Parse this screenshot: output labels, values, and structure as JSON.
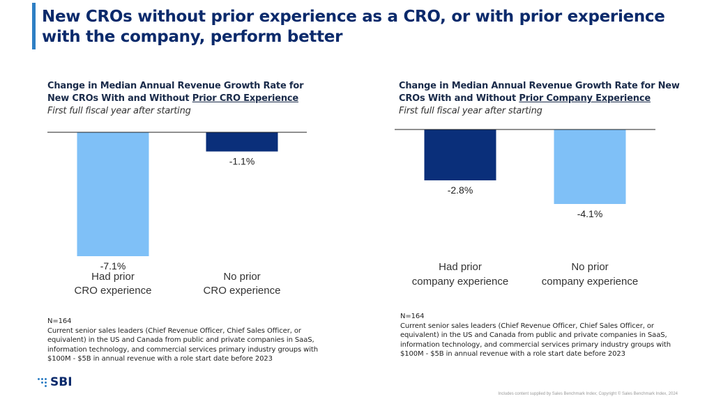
{
  "header": {
    "title": "New CROs without prior experience as a CRO, or with prior experience with the company, perform better"
  },
  "colors": {
    "accent": "#2e7fc4",
    "title": "#0b2a6b",
    "light_bar": "#7fc0f7",
    "dark_bar": "#0a2f7a"
  },
  "chart_data": [
    {
      "type": "bar",
      "title_prefix": "Change in Median Annual Revenue Growth Rate for New CROs With and Without ",
      "title_underlined": "Prior CRO Experience",
      "subtitle": "First full fiscal year after starting",
      "categories": [
        "Had prior CRO experience",
        "No prior CRO experience"
      ],
      "category_lines": [
        [
          "Had prior",
          "CRO experience"
        ],
        [
          "No prior",
          "CRO experience"
        ]
      ],
      "values": [
        -7.1,
        -1.1
      ],
      "value_labels": [
        "-7.1%",
        "-1.1%"
      ],
      "bar_colors": [
        "#7fc0f7",
        "#0a2f7a"
      ],
      "ylim": [
        -7.1,
        0
      ],
      "grid": false,
      "legend": "none"
    },
    {
      "type": "bar",
      "title_prefix": "Change in Median Annual Revenue Growth Rate for New CROs With and Without ",
      "title_underlined": "Prior Company Experience",
      "subtitle": "First full fiscal year after starting",
      "categories": [
        "Had prior company experience",
        "No prior company experience"
      ],
      "category_lines": [
        [
          "Had prior",
          "company experience"
        ],
        [
          "No prior",
          "company experience"
        ]
      ],
      "values": [
        -2.8,
        -4.1
      ],
      "value_labels": [
        "-2.8%",
        "-4.1%"
      ],
      "bar_colors": [
        "#0a2f7a",
        "#7fc0f7"
      ],
      "ylim": [
        -4.1,
        0
      ],
      "grid": false,
      "legend": "none"
    }
  ],
  "notes": {
    "left": {
      "n": "N=164",
      "text": "Current senior sales leaders (Chief Revenue Officer, Chief Sales Officer, or equivalent) in the US and Canada from public and private companies in SaaS, information technology, and commercial services primary industry groups with $100M - $5B in annual revenue with a role start date before 2023"
    },
    "right": {
      "n": "N=164",
      "text": "Current senior sales leaders (Chief Revenue Officer, Chief Sales Officer, or equivalent) in the US and Canada from public and private companies in SaaS, information technology, and commercial services primary industry groups with $100M - $5B in annual revenue with a role start date before 2023"
    }
  },
  "footer": {
    "logo_text": "SBI",
    "copyright": "Includes content supplied by Sales Benchmark Index; Copyright © Sales Benchmark Index, 2024"
  }
}
